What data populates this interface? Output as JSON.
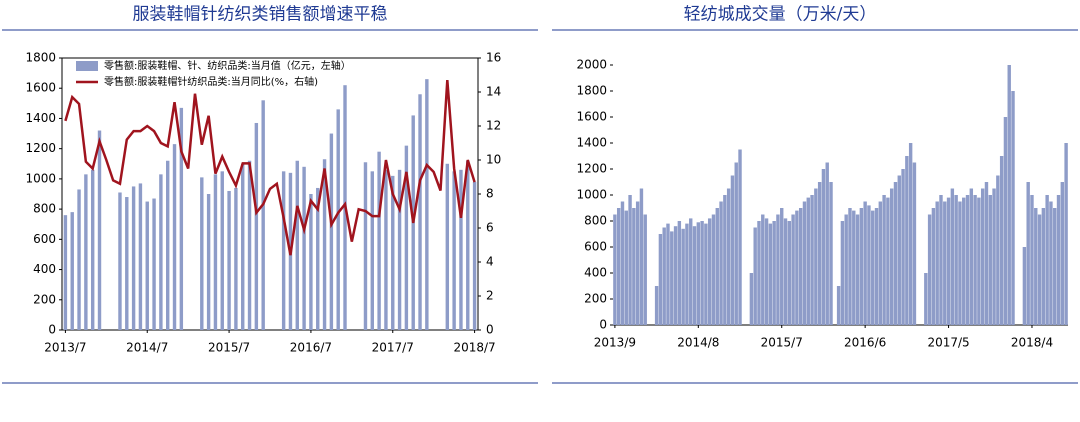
{
  "chart_data": [
    {
      "type": "combo",
      "title": "服装鞋帽针纺织类销售额增速平稳",
      "categories": [
        "2013/7",
        null,
        null,
        null,
        null,
        null,
        null,
        null,
        null,
        null,
        null,
        null,
        "2014/7",
        null,
        null,
        null,
        null,
        null,
        null,
        null,
        null,
        null,
        null,
        null,
        "2015/7",
        null,
        null,
        null,
        null,
        null,
        null,
        null,
        null,
        null,
        null,
        null,
        "2016/7",
        null,
        null,
        null,
        null,
        null,
        null,
        null,
        null,
        null,
        null,
        null,
        "2017/7",
        null,
        null,
        null,
        null,
        null,
        null,
        null,
        null,
        null,
        null,
        null,
        "2018/7"
      ],
      "series": [
        {
          "name": "零售额:服装鞋帽、针、纺织品类:当月值（亿元，左轴）",
          "type": "bar",
          "color": "#8e9cc8",
          "values": [
            760,
            780,
            930,
            1030,
            1060,
            1320,
            null,
            null,
            910,
            880,
            950,
            970,
            850,
            870,
            1030,
            1120,
            1230,
            1470,
            null,
            null,
            1010,
            900,
            1030,
            1050,
            920,
            940,
            1100,
            1120,
            1370,
            1520,
            null,
            null,
            1050,
            1040,
            1120,
            1080,
            900,
            940,
            1130,
            1300,
            1460,
            1620,
            null,
            null,
            1110,
            1050,
            1180,
            1060,
            1020,
            1060,
            1220,
            1420,
            1560,
            1660,
            null,
            null,
            1100,
            1050,
            1060,
            1120,
            980
          ]
        },
        {
          "name": "零售额:服装鞋帽针纺织品类:当月同比(%，右轴)",
          "type": "line",
          "axis": "y2",
          "color": "#a0141e",
          "values": [
            12.3,
            13.7,
            13.3,
            9.9,
            9.5,
            11.1,
            10.0,
            8.8,
            8.6,
            11.2,
            11.7,
            11.7,
            12.0,
            11.7,
            11.0,
            10.8,
            13.4,
            10.5,
            9.5,
            13.9,
            10.9,
            12.6,
            9.2,
            10.2,
            9.3,
            8.5,
            9.8,
            9.8,
            6.9,
            7.4,
            8.3,
            8.6,
            6.6,
            4.4,
            7.3,
            5.9,
            7.6,
            7.1,
            9.5,
            6.2,
            6.9,
            7.4,
            5.2,
            7.1,
            7.0,
            6.7,
            6.7,
            10.0,
            8.0,
            7.1,
            9.3,
            6.3,
            8.8,
            9.7,
            9.3,
            8.2,
            14.7,
            9.5,
            6.6,
            10.0,
            8.7
          ]
        }
      ],
      "ylim": [
        0,
        1800
      ],
      "yticks": [
        0,
        200,
        400,
        600,
        800,
        1000,
        1200,
        1400,
        1600,
        1800
      ],
      "y2lim": [
        0,
        16
      ],
      "y2ticks": [
        0,
        2,
        4,
        6,
        8,
        10,
        12,
        14,
        16
      ]
    },
    {
      "type": "bar",
      "title": "轻纺城成交量（万米/天）",
      "categories": [
        "2013/9",
        null,
        null,
        null,
        null,
        null,
        null,
        null,
        null,
        null,
        null,
        null,
        null,
        null,
        null,
        null,
        null,
        null,
        null,
        null,
        null,
        null,
        "2014/8",
        null,
        null,
        null,
        null,
        null,
        null,
        null,
        null,
        null,
        null,
        null,
        null,
        null,
        null,
        null,
        null,
        null,
        null,
        null,
        null,
        null,
        "2015/7",
        null,
        null,
        null,
        null,
        null,
        null,
        null,
        null,
        null,
        null,
        null,
        null,
        null,
        null,
        null,
        null,
        null,
        null,
        null,
        null,
        null,
        "2016/6",
        null,
        null,
        null,
        null,
        null,
        null,
        null,
        null,
        null,
        null,
        null,
        null,
        null,
        null,
        null,
        null,
        null,
        null,
        null,
        null,
        null,
        "2017/5",
        null,
        null,
        null,
        null,
        null,
        null,
        null,
        null,
        null,
        null,
        null,
        null,
        null,
        null,
        null,
        null,
        null,
        null,
        null,
        null,
        null,
        "2018/4",
        null,
        null,
        null,
        null,
        null,
        null,
        null,
        null,
        null
      ],
      "values": [
        850,
        900,
        950,
        880,
        1000,
        900,
        950,
        1050,
        850,
        0,
        0,
        300,
        700,
        750,
        780,
        720,
        760,
        800,
        740,
        780,
        820,
        760,
        790,
        800,
        780,
        820,
        850,
        900,
        950,
        1000,
        1050,
        1150,
        1250,
        1350,
        0,
        0,
        400,
        750,
        800,
        850,
        820,
        780,
        800,
        850,
        900,
        820,
        800,
        850,
        880,
        900,
        950,
        980,
        1000,
        1050,
        1100,
        1200,
        1250,
        1100,
        0,
        300,
        800,
        850,
        900,
        880,
        850,
        900,
        950,
        920,
        880,
        900,
        950,
        1000,
        980,
        1050,
        1100,
        1150,
        1200,
        1300,
        1400,
        1250,
        0,
        0,
        400,
        850,
        900,
        950,
        1000,
        950,
        980,
        1050,
        1000,
        950,
        980,
        1000,
        1050,
        1000,
        980,
        1050,
        1100,
        1000,
        1050,
        1150,
        1300,
        1600,
        2000,
        1800,
        0,
        0,
        600,
        1100,
        1000,
        900,
        850,
        900,
        1000,
        950,
        900,
        1000,
        1100,
        1400
      ],
      "color": "#8e9cc8",
      "ylim": [
        0,
        2000
      ],
      "yticks": [
        0,
        200,
        400,
        600,
        800,
        1000,
        1200,
        1400,
        1600,
        1800,
        2000
      ]
    }
  ]
}
